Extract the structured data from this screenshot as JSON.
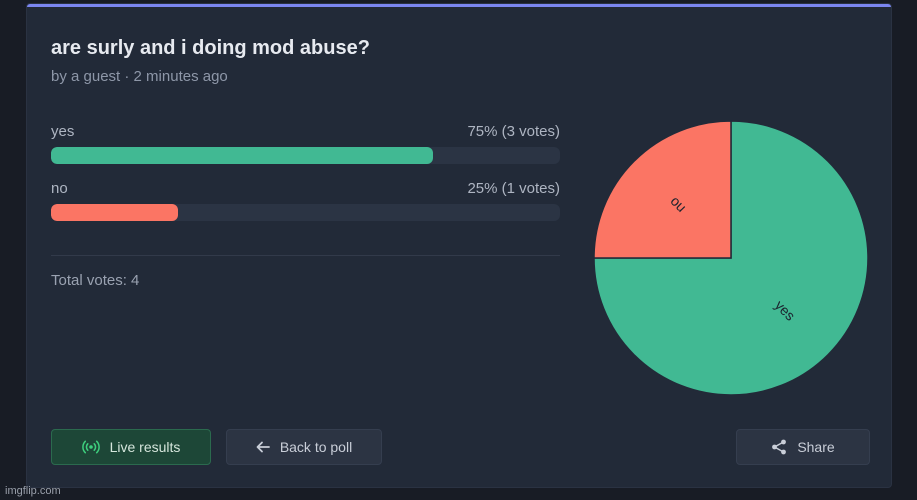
{
  "poll": {
    "title": "are surly and i doing mod abuse?",
    "meta": "by a guest · 2 minutes ago",
    "options": [
      {
        "label": "yes",
        "stat": "75% (3 votes)",
        "percent": 75,
        "color": "#41b993"
      },
      {
        "label": "no",
        "stat": "25% (1 votes)",
        "percent": 25,
        "color": "#fb7564"
      }
    ],
    "total": "Total votes: 4"
  },
  "chart_data": {
    "type": "pie",
    "categories": [
      "yes",
      "no"
    ],
    "values": [
      3,
      1
    ],
    "colors": [
      "#41b993",
      "#fb7564"
    ],
    "title": ""
  },
  "actions": {
    "live": "Live results",
    "back": "Back to poll",
    "share": "Share"
  },
  "icons": {
    "live": "broadcast-icon",
    "back": "arrow-left-icon",
    "share": "share-icon"
  },
  "colors": {
    "accent": "#7b86f1",
    "live_green": "#3ecf7e"
  },
  "watermark": "imgflip.com"
}
